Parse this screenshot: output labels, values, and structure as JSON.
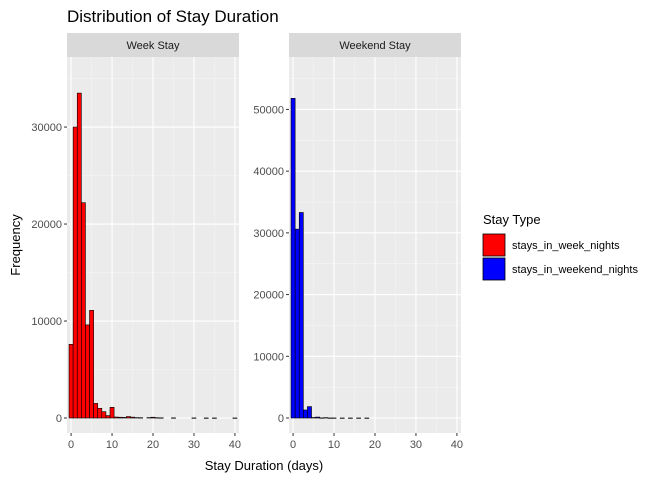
{
  "chart_data": {
    "type": "bar",
    "title": "Distribution of Stay Duration",
    "xlabel": "Stay Duration (days)",
    "ylabel": "Frequency",
    "bin_width": 1,
    "xlim": [
      -1,
      41
    ],
    "x_ticks": [
      0,
      10,
      20,
      30,
      40
    ],
    "grid": true,
    "legend": {
      "title": "Stay Type",
      "placement": "right",
      "entries": [
        {
          "label": "stays_in_week_nights",
          "color": "#ff0000"
        },
        {
          "label": "stays_in_weekend_nights",
          "color": "#0000ff"
        }
      ]
    },
    "facets": [
      {
        "label": "Week Stay",
        "series": "stays_in_week_nights",
        "color": "#ff0000",
        "ylim": [
          0,
          35000
        ],
        "y_ticks": [
          0,
          10000,
          20000,
          30000
        ],
        "bins": [
          {
            "x": 0,
            "count": 7600
          },
          {
            "x": 1,
            "count": 30000
          },
          {
            "x": 2,
            "count": 33500
          },
          {
            "x": 3,
            "count": 22200
          },
          {
            "x": 4,
            "count": 9600
          },
          {
            "x": 5,
            "count": 11100
          },
          {
            "x": 6,
            "count": 1500
          },
          {
            "x": 7,
            "count": 1000
          },
          {
            "x": 8,
            "count": 650
          },
          {
            "x": 9,
            "count": 250
          },
          {
            "x": 10,
            "count": 1100
          },
          {
            "x": 11,
            "count": 100
          },
          {
            "x": 12,
            "count": 80
          },
          {
            "x": 13,
            "count": 60
          },
          {
            "x": 14,
            "count": 150
          },
          {
            "x": 15,
            "count": 90
          },
          {
            "x": 16,
            "count": 40
          },
          {
            "x": 17,
            "count": 30
          },
          {
            "x": 19,
            "count": 40
          },
          {
            "x": 20,
            "count": 80
          },
          {
            "x": 21,
            "count": 30
          },
          {
            "x": 22,
            "count": 20
          },
          {
            "x": 25,
            "count": 15
          },
          {
            "x": 30,
            "count": 10
          },
          {
            "x": 33,
            "count": 5
          },
          {
            "x": 35,
            "count": 5
          },
          {
            "x": 40,
            "count": 5
          }
        ]
      },
      {
        "label": "Weekend Stay",
        "series": "stays_in_weekend_nights",
        "color": "#0000ff",
        "ylim": [
          0,
          55000
        ],
        "y_ticks": [
          0,
          10000,
          20000,
          30000,
          40000,
          50000
        ],
        "bins": [
          {
            "x": 0,
            "count": 51800
          },
          {
            "x": 1,
            "count": 30600
          },
          {
            "x": 2,
            "count": 33300
          },
          {
            "x": 3,
            "count": 1300
          },
          {
            "x": 4,
            "count": 1850
          },
          {
            "x": 5,
            "count": 80
          },
          {
            "x": 6,
            "count": 150
          },
          {
            "x": 7,
            "count": 20
          },
          {
            "x": 8,
            "count": 60
          },
          {
            "x": 9,
            "count": 10
          },
          {
            "x": 10,
            "count": 10
          },
          {
            "x": 12,
            "count": 5
          },
          {
            "x": 14,
            "count": 5
          },
          {
            "x": 16,
            "count": 5
          },
          {
            "x": 18,
            "count": 3
          }
        ]
      }
    ]
  }
}
